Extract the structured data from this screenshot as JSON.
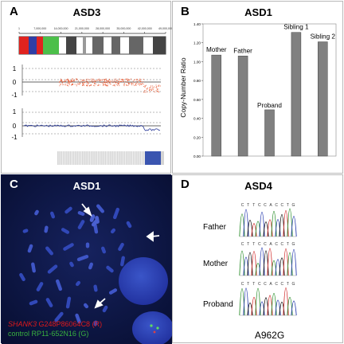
{
  "panels": {
    "A": {
      "letter": "A",
      "title": "ASD3",
      "ruler_ticks": [
        "1",
        "7,000,000",
        "14,000,000",
        "21,000,000",
        "28,000,000",
        "35,000,000",
        "42,000,000",
        "49,000,000"
      ],
      "track1_axis": [
        "1",
        "0",
        "-1"
      ],
      "track2_axis": [
        "1",
        "0",
        "-1"
      ]
    },
    "B": {
      "letter": "B",
      "title": "ASD1"
    },
    "C": {
      "letter": "C",
      "title": "ASD1",
      "legend_gene": "SHANK3",
      "legend_probe": " G248P86064C8 (R)",
      "legend_control": "control RP11-652N16 (G)"
    },
    "D": {
      "letter": "D",
      "title": "ASD4",
      "rows": [
        {
          "label": "Father",
          "seq": "CTTCCACCTG"
        },
        {
          "label": "Mother",
          "seq": "CTTCCACCTG"
        },
        {
          "label": "Proband",
          "seq": "CTTCCACCTG"
        }
      ],
      "mutation": "A962G"
    }
  },
  "chart_data": {
    "type": "bar",
    "ylabel": "Copy-Number Ratio",
    "ylim": [
      0,
      1.4
    ],
    "yticks": [
      "0.00",
      "0.20",
      "0.40",
      "0.60",
      "0.80",
      "1.00",
      "1.20",
      "1.40"
    ],
    "categories": [
      "Mother",
      "Father",
      "Proband",
      "Sibling 1",
      "Sibling 2"
    ],
    "values": [
      1.07,
      1.06,
      0.49,
      1.31,
      1.21
    ],
    "bar_color": "#808080"
  },
  "colors": {
    "legend_red": "#e0191b",
    "legend_green": "#38b03f",
    "fish_bg": "#0a1440",
    "trace_red": "#e8532a",
    "trace_blue": "#2b3b9a"
  }
}
